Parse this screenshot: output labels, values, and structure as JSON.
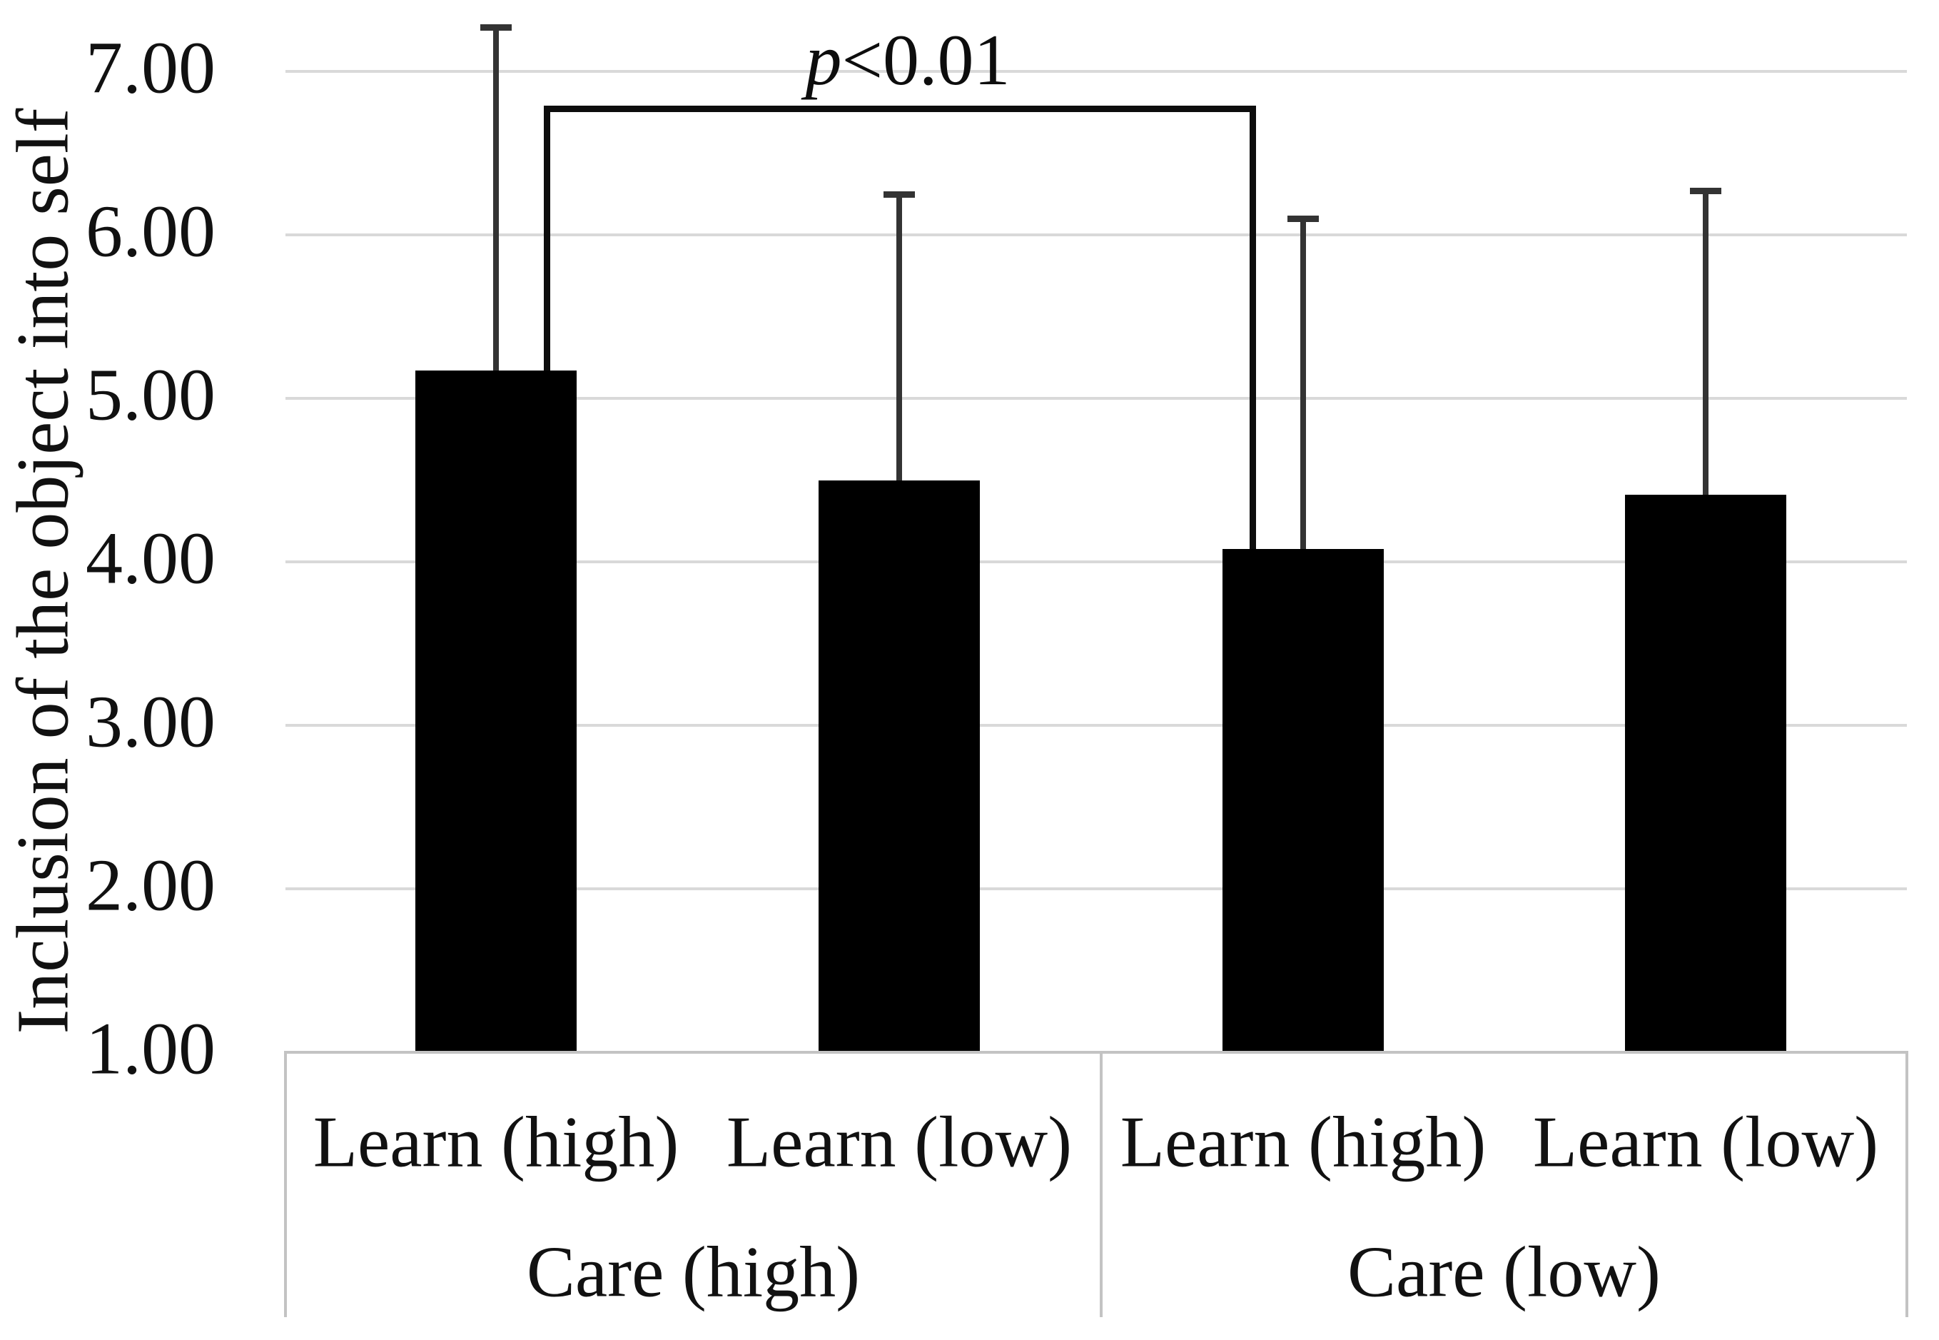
{
  "chart_data": {
    "type": "bar",
    "title": "",
    "xlabel": "",
    "ylabel": "Inclusion of the object into self",
    "ylim": [
      1,
      7
    ],
    "yticks": [
      {
        "value": 7,
        "label": "7.00"
      },
      {
        "value": 6,
        "label": "6.00"
      },
      {
        "value": 5,
        "label": "5.00"
      },
      {
        "value": 4,
        "label": "4.00"
      },
      {
        "value": 3,
        "label": "3.00"
      },
      {
        "value": 2,
        "label": "2.00"
      },
      {
        "value": 1,
        "label": "1.00"
      }
    ],
    "gridlines": true,
    "legend": "none",
    "bar_color": "#000000",
    "error_bar_color": "#333333",
    "groups": [
      {
        "label": "Care (high)",
        "bars": [
          {
            "label": "Learn (high)",
            "value": 5.17,
            "error_top": 7.27
          },
          {
            "label": "Learn (low)",
            "value": 4.5,
            "error_top": 6.25
          }
        ]
      },
      {
        "label": "Care (low)",
        "bars": [
          {
            "label": "Learn (high)",
            "value": 4.08,
            "error_top": 6.1
          },
          {
            "label": "Learn (low)",
            "value": 4.41,
            "error_top": 6.27
          }
        ]
      }
    ],
    "significance": {
      "text_var": "p",
      "text_rest": "<0.01",
      "from_bar_index": 0,
      "to_bar_index": 2,
      "bracket_top_value": 6.79
    }
  }
}
